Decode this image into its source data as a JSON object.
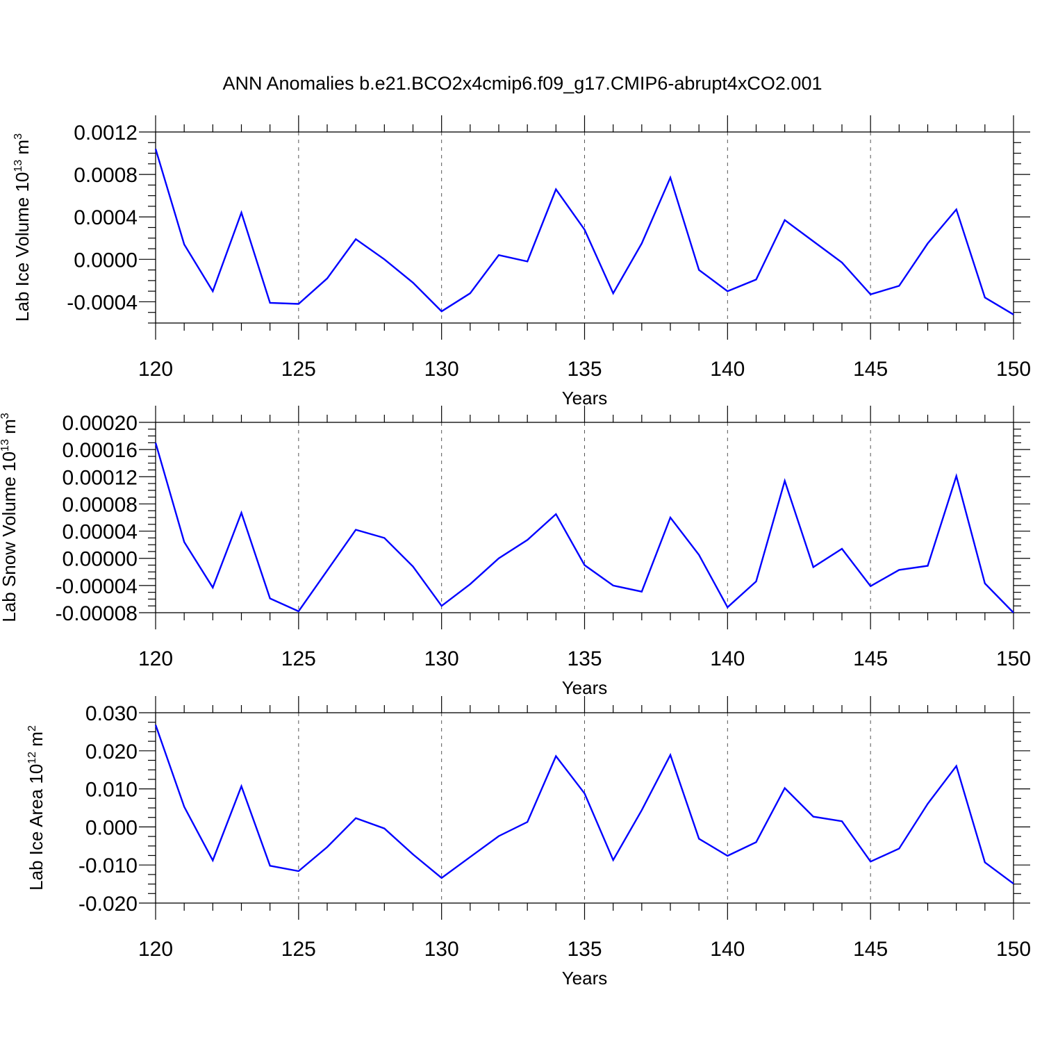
{
  "title": "ANN Anomalies b.e21.BCO2x4cmip6.f09_g17.CMIP6-abrupt4xCO2.001",
  "chart_data": [
    {
      "type": "line",
      "xlabel": "Years",
      "ylabel": "Lab Ice Volume 10",
      "ylabel_exp": "13",
      "ylabel_unit": " m",
      "ylabel_unit_exp": "3",
      "xlim": [
        120,
        150
      ],
      "ylim": [
        -0.0006,
        0.0012
      ],
      "x_ticks": [
        120,
        125,
        130,
        135,
        140,
        145,
        150
      ],
      "x_tick_labels": [
        "120",
        "125",
        "130",
        "135",
        "140",
        "145",
        "150"
      ],
      "y_ticks": [
        0.0012,
        0.0008,
        0.0004,
        0.0,
        -0.0004
      ],
      "y_tick_labels": [
        "0.0012",
        "0.0008",
        "0.0004",
        "0.0000",
        "-0.0004"
      ],
      "grid": "vertical-dashed",
      "color": "#0000ff",
      "x": [
        120,
        121,
        122,
        123,
        124,
        125,
        126,
        127,
        128,
        129,
        130,
        131,
        132,
        133,
        134,
        135,
        136,
        137,
        138,
        139,
        140,
        141,
        142,
        143,
        144,
        145,
        146,
        147,
        148,
        149,
        150
      ],
      "y": [
        0.00104,
        0.00014,
        -0.0003,
        0.00044,
        -0.00041,
        -0.00042,
        -0.00018,
        0.00019,
        0.0,
        -0.00022,
        -0.00049,
        -0.00032,
        4e-05,
        -2e-05,
        0.00066,
        0.00028,
        -0.00032,
        0.00015,
        0.00077,
        -0.0001,
        -0.0003,
        -0.00019,
        0.00037,
        0.00017,
        -3e-05,
        -0.00033,
        -0.00025,
        0.00015,
        0.00047,
        -0.00036,
        -0.00052
      ]
    },
    {
      "type": "line",
      "xlabel": "Years",
      "ylabel": "Lab Snow Volume 10",
      "ylabel_exp": "13",
      "ylabel_unit": " m",
      "ylabel_unit_exp": "3",
      "xlim": [
        120,
        150
      ],
      "ylim": [
        -8e-05,
        0.0002
      ],
      "x_ticks": [
        120,
        125,
        130,
        135,
        140,
        145,
        150
      ],
      "x_tick_labels": [
        "120",
        "125",
        "130",
        "135",
        "140",
        "145",
        "150"
      ],
      "y_ticks": [
        0.0002,
        0.00016,
        0.00012,
        8e-05,
        4e-05,
        0.0,
        -4e-05,
        -8e-05
      ],
      "y_tick_labels": [
        "0.00020",
        "0.00016",
        "0.00012",
        "0.00008",
        "0.00004",
        "0.00000",
        "-0.00004",
        "-0.00008"
      ],
      "grid": "vertical-dashed",
      "color": "#0000ff",
      "x": [
        120,
        121,
        122,
        123,
        124,
        125,
        126,
        127,
        128,
        129,
        130,
        131,
        132,
        133,
        134,
        135,
        136,
        137,
        138,
        139,
        140,
        141,
        142,
        143,
        144,
        145,
        146,
        147,
        148,
        149,
        150
      ],
      "y": [
        0.00017,
        2.4e-05,
        -4.3e-05,
        6.7e-05,
        -5.9e-05,
        -7.8e-05,
        -1.8e-05,
        4.2e-05,
        3e-05,
        -1.2e-05,
        -7e-05,
        -3.8e-05,
        0.0,
        2.7e-05,
        6.5e-05,
        -1e-05,
        -4e-05,
        -4.9e-05,
        6e-05,
        5e-06,
        -7.2e-05,
        -3.4e-05,
        0.000114,
        -1.3e-05,
        1.4e-05,
        -4.1e-05,
        -1.7e-05,
        -1.1e-05,
        0.000121,
        -3.7e-05,
        -8e-05
      ]
    },
    {
      "type": "line",
      "xlabel": "Years",
      "ylabel": "Lab Ice Area 10",
      "ylabel_exp": "12",
      "ylabel_unit": " m",
      "ylabel_unit_exp": "2",
      "xlim": [
        120,
        150
      ],
      "ylim": [
        -0.02,
        0.03
      ],
      "x_ticks": [
        120,
        125,
        130,
        135,
        140,
        145,
        150
      ],
      "x_tick_labels": [
        "120",
        "125",
        "130",
        "135",
        "140",
        "145",
        "150"
      ],
      "y_ticks": [
        0.03,
        0.02,
        0.01,
        0.0,
        -0.01,
        -0.02
      ],
      "y_tick_labels": [
        "0.030",
        "0.020",
        "0.010",
        "0.000",
        "-0.010",
        "-0.020"
      ],
      "grid": "vertical-dashed",
      "color": "#0000ff",
      "x": [
        120,
        121,
        122,
        123,
        124,
        125,
        126,
        127,
        128,
        129,
        130,
        131,
        132,
        133,
        134,
        135,
        136,
        137,
        138,
        139,
        140,
        141,
        142,
        143,
        144,
        145,
        146,
        147,
        148,
        149,
        150
      ],
      "y": [
        0.0268,
        0.0053,
        -0.0088,
        0.0107,
        -0.0102,
        -0.0116,
        -0.0053,
        0.0023,
        -0.0004,
        -0.0072,
        -0.0134,
        -0.0079,
        -0.0024,
        0.0013,
        0.0186,
        0.0088,
        -0.0087,
        0.0044,
        0.0189,
        -0.0031,
        -0.0076,
        -0.004,
        0.0102,
        0.0027,
        0.0015,
        -0.0091,
        -0.0057,
        0.0061,
        0.016,
        -0.0093,
        -0.0149
      ]
    }
  ]
}
